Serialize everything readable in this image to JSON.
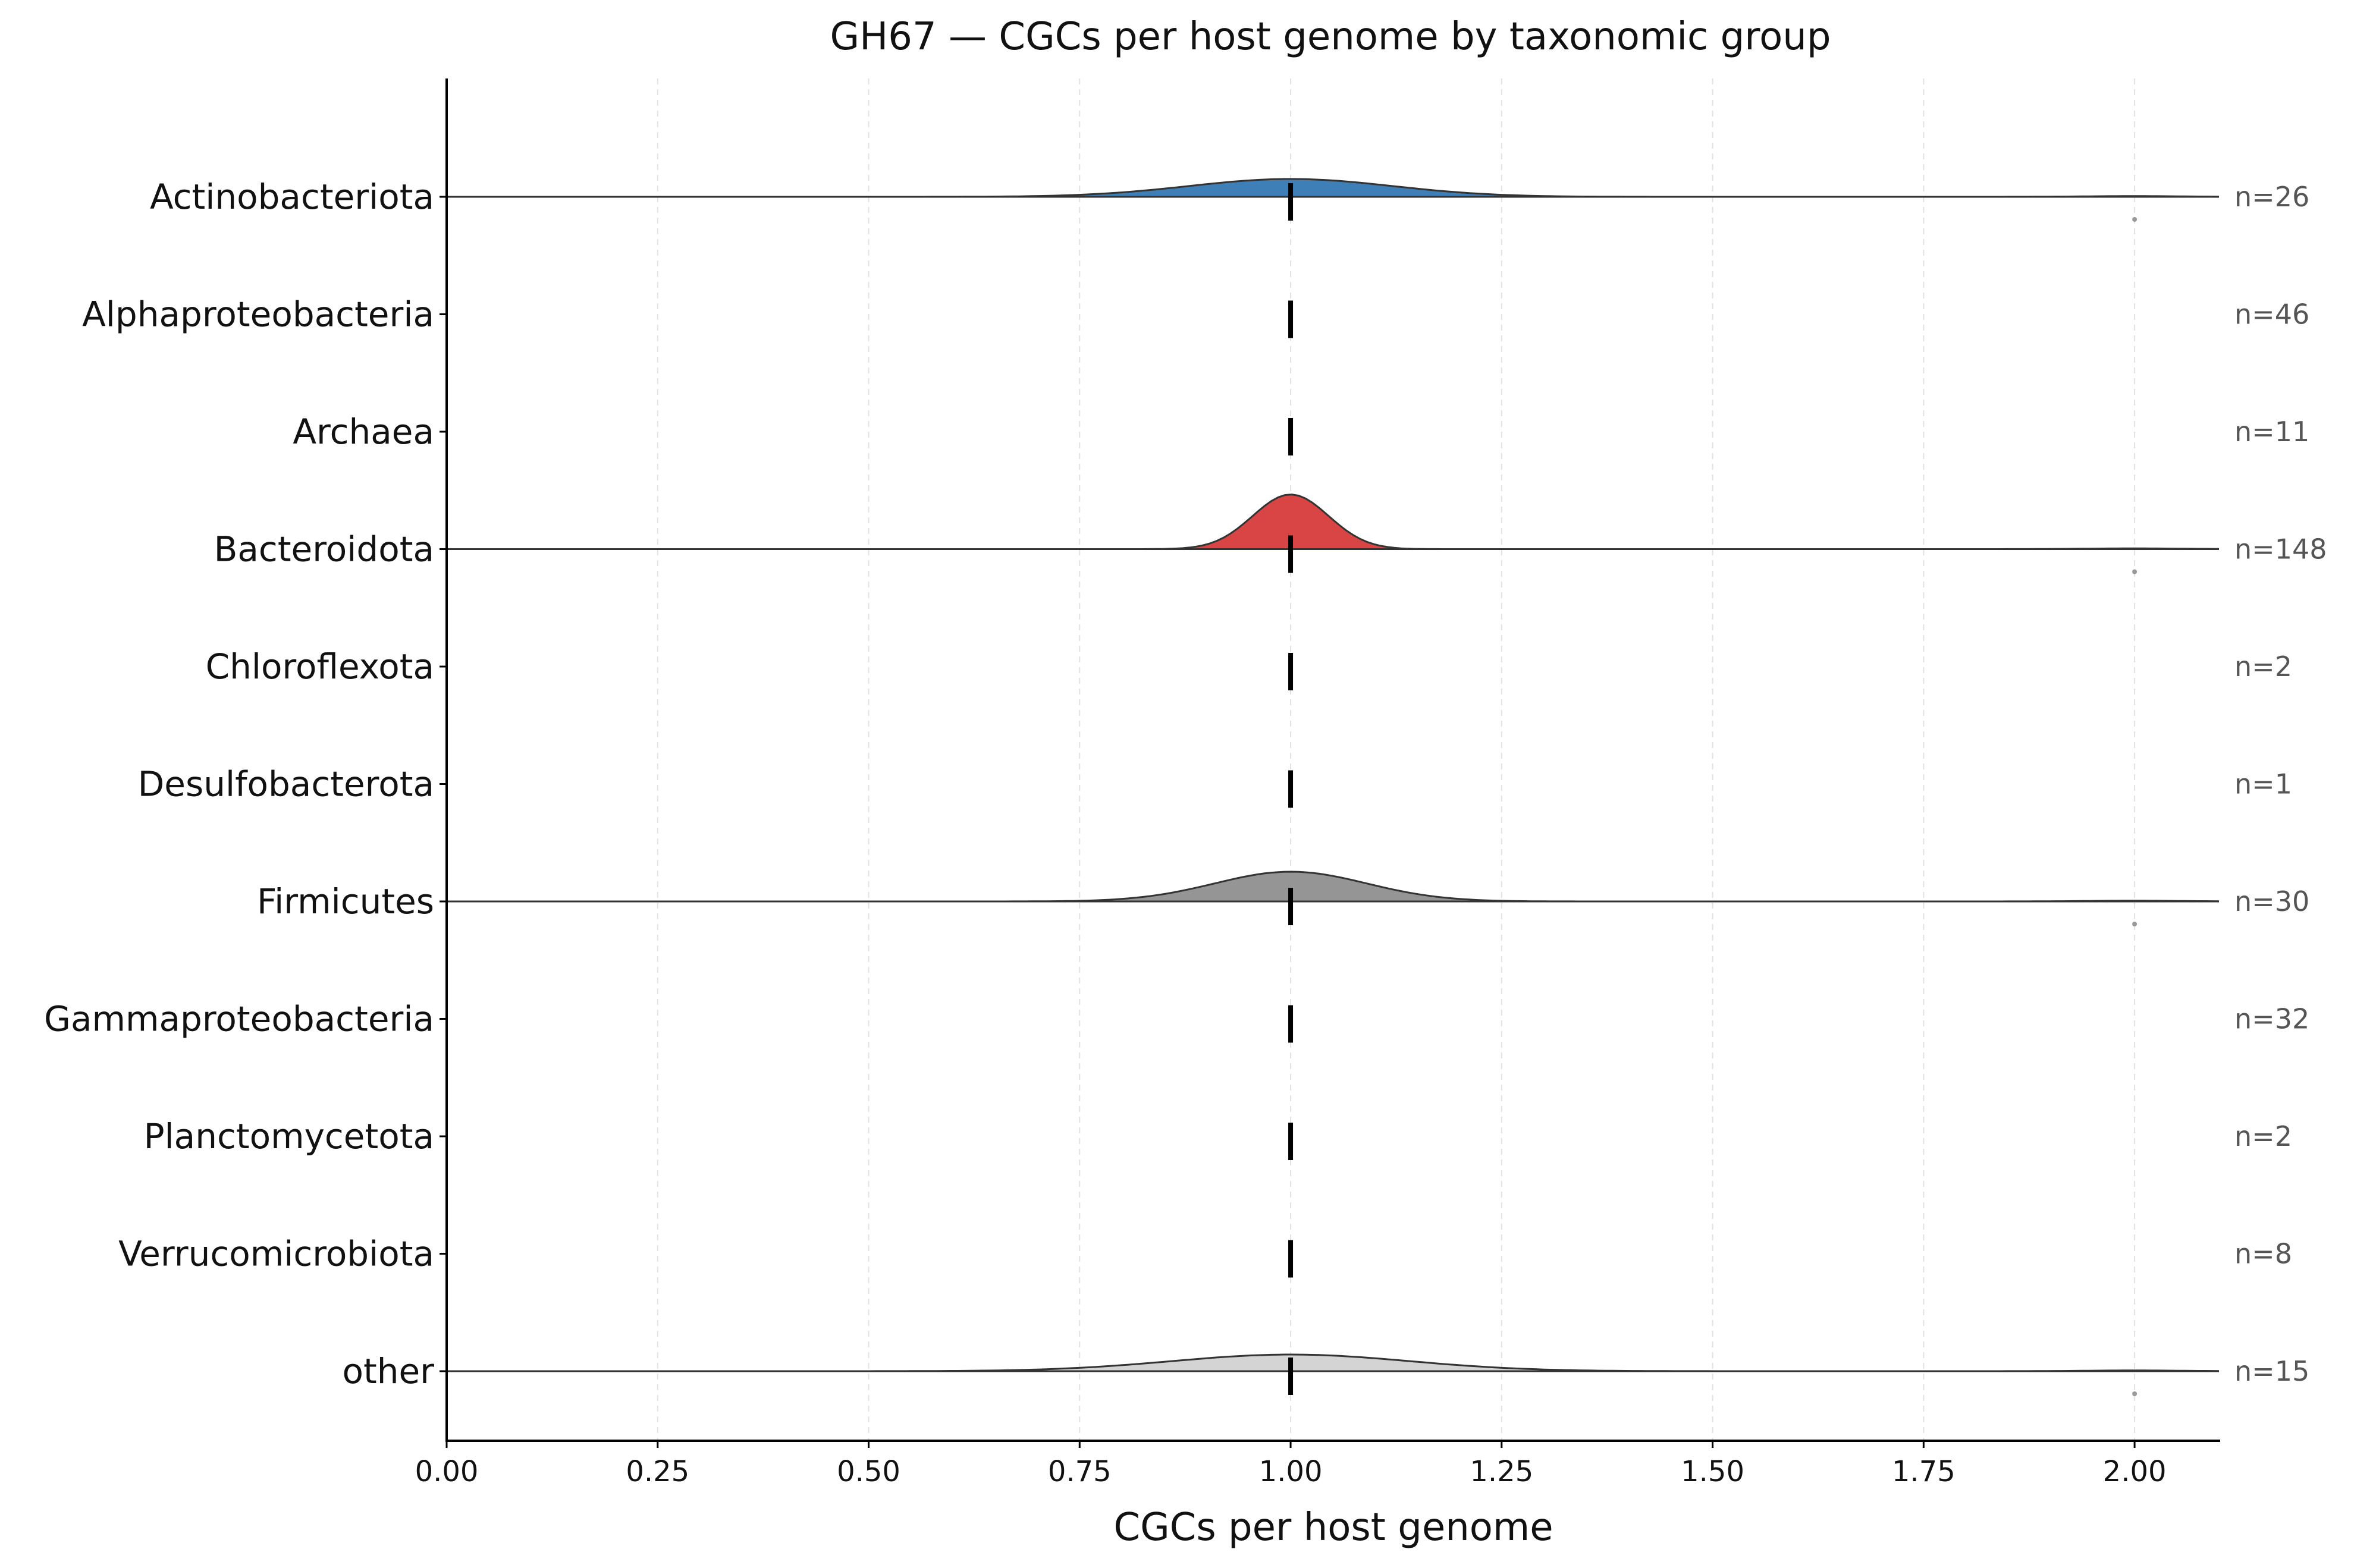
{
  "chart_data": {
    "type": "ridgeline",
    "title": "GH67 — CGCs per host genome by taxonomic group",
    "xlabel": "CGCs per host genome",
    "ylabel": "",
    "xlim": [
      0,
      2.1
    ],
    "xticks": [
      "0.00",
      "0.25",
      "0.50",
      "0.75",
      "1.00",
      "1.25",
      "1.50",
      "1.75",
      "2.00"
    ],
    "xtick_values": [
      0,
      0.25,
      0.5,
      0.75,
      1.0,
      1.25,
      1.5,
      1.75,
      2.0
    ],
    "grid": "vertical dashed",
    "groups": [
      {
        "name": "Actinobacteriota",
        "n_label": "n=26",
        "n": 26,
        "median": 1.0,
        "outliers": [
          2.0
        ],
        "peak_density": 0.15,
        "sigma": 0.12,
        "color": "#3f7fb8"
      },
      {
        "name": "Alphaproteobacteria",
        "n_label": "n=46",
        "n": 46,
        "median": 1.0,
        "outliers": [],
        "peak_density": 0,
        "sigma": 0,
        "color": "#cccccc"
      },
      {
        "name": "Archaea",
        "n_label": "n=11",
        "n": 11,
        "median": 1.0,
        "outliers": [],
        "peak_density": 0,
        "sigma": 0,
        "color": "#cccccc"
      },
      {
        "name": "Bacteroidota",
        "n_label": "n=148",
        "n": 148,
        "median": 1.0,
        "outliers": [
          2.0
        ],
        "peak_density": 0.46,
        "sigma": 0.045,
        "color": "#d94545"
      },
      {
        "name": "Chloroflexota",
        "n_label": "n=2",
        "n": 2,
        "median": 1.0,
        "outliers": [],
        "peak_density": 0,
        "sigma": 0,
        "color": "#cccccc"
      },
      {
        "name": "Desulfobacterota",
        "n_label": "n=1",
        "n": 1,
        "median": 1.0,
        "outliers": [],
        "peak_density": 0,
        "sigma": 0,
        "color": "#cccccc"
      },
      {
        "name": "Firmicutes",
        "n_label": "n=30",
        "n": 30,
        "median": 1.0,
        "outliers": [
          2.0
        ],
        "peak_density": 0.25,
        "sigma": 0.09,
        "color": "#959595"
      },
      {
        "name": "Gammaproteobacteria",
        "n_label": "n=32",
        "n": 32,
        "median": 1.0,
        "outliers": [],
        "peak_density": 0,
        "sigma": 0,
        "color": "#cccccc"
      },
      {
        "name": "Planctomycetota",
        "n_label": "n=2",
        "n": 2,
        "median": 1.0,
        "outliers": [],
        "peak_density": 0,
        "sigma": 0,
        "color": "#cccccc"
      },
      {
        "name": "Verrucomicrobiota",
        "n_label": "n=8",
        "n": 8,
        "median": 1.0,
        "outliers": [],
        "peak_density": 0,
        "sigma": 0,
        "color": "#cccccc"
      },
      {
        "name": "other",
        "n_label": "n=15",
        "n": 15,
        "median": 1.0,
        "outliers": [
          2.0
        ],
        "peak_density": 0.14,
        "sigma": 0.14,
        "color": "#d4d4d4"
      }
    ]
  }
}
